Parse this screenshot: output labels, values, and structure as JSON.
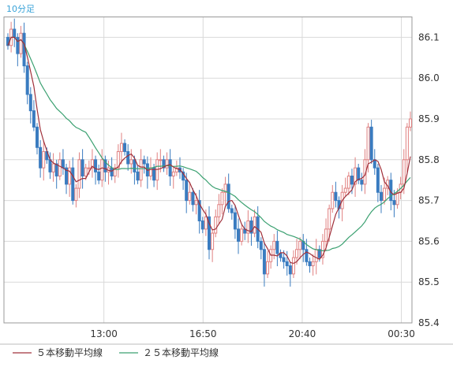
{
  "chart_data": {
    "type": "candlestick",
    "interval_label": "10分足",
    "x_ticks": [
      "13:00",
      "16:50",
      "20:40",
      "00:30"
    ],
    "y_ticks": [
      "86.1",
      "86.0",
      "85.9",
      "85.8",
      "85.7",
      "85.6",
      "85.5",
      "85.4"
    ],
    "ylim": [
      85.4,
      86.15
    ],
    "legend": [
      {
        "name": "５本移動平均線",
        "color": "#a0303a"
      },
      {
        "name": "２５本移動平均線",
        "color": "#3aa070"
      }
    ],
    "colors": {
      "up": "#e08080",
      "down": "#3a7cc0",
      "ma5": "#a0303a",
      "ma25": "#3aa070",
      "grid": "#d9d9d9"
    },
    "closes": [
      86.08,
      86.12,
      86.1,
      86.06,
      86.11,
      86.03,
      85.96,
      85.92,
      85.88,
      85.83,
      85.78,
      85.82,
      85.8,
      85.77,
      85.79,
      85.76,
      85.8,
      85.78,
      85.74,
      85.78,
      85.7,
      85.73,
      85.8,
      85.76,
      85.78,
      85.78,
      85.8,
      85.77,
      85.75,
      85.8,
      85.77,
      85.78,
      85.76,
      85.78,
      85.82,
      85.84,
      85.82,
      85.79,
      85.8,
      85.77,
      85.75,
      85.8,
      85.79,
      85.76,
      85.78,
      85.75,
      85.8,
      85.8,
      85.78,
      85.8,
      85.76,
      85.77,
      85.78,
      85.77,
      85.75,
      85.7,
      85.72,
      85.69,
      85.7,
      85.65,
      85.63,
      85.66,
      85.58,
      85.62,
      85.66,
      85.69,
      85.72,
      85.74,
      85.68,
      85.67,
      85.63,
      85.6,
      85.63,
      85.62,
      85.65,
      85.62,
      85.66,
      85.6,
      85.58,
      85.52,
      85.55,
      85.58,
      85.6,
      85.57,
      85.56,
      85.55,
      85.54,
      85.52,
      85.56,
      85.58,
      85.6,
      85.58,
      85.55,
      85.54,
      85.55,
      85.58,
      85.56,
      85.6,
      85.63,
      85.68,
      85.72,
      85.7,
      85.68,
      85.72,
      85.73,
      85.76,
      85.74,
      85.78,
      85.75,
      85.74,
      85.8,
      85.88,
      85.8,
      85.78,
      85.72,
      85.7,
      85.73,
      85.75,
      85.7,
      85.69,
      85.72,
      85.74,
      85.8,
      85.88,
      85.9
    ]
  }
}
